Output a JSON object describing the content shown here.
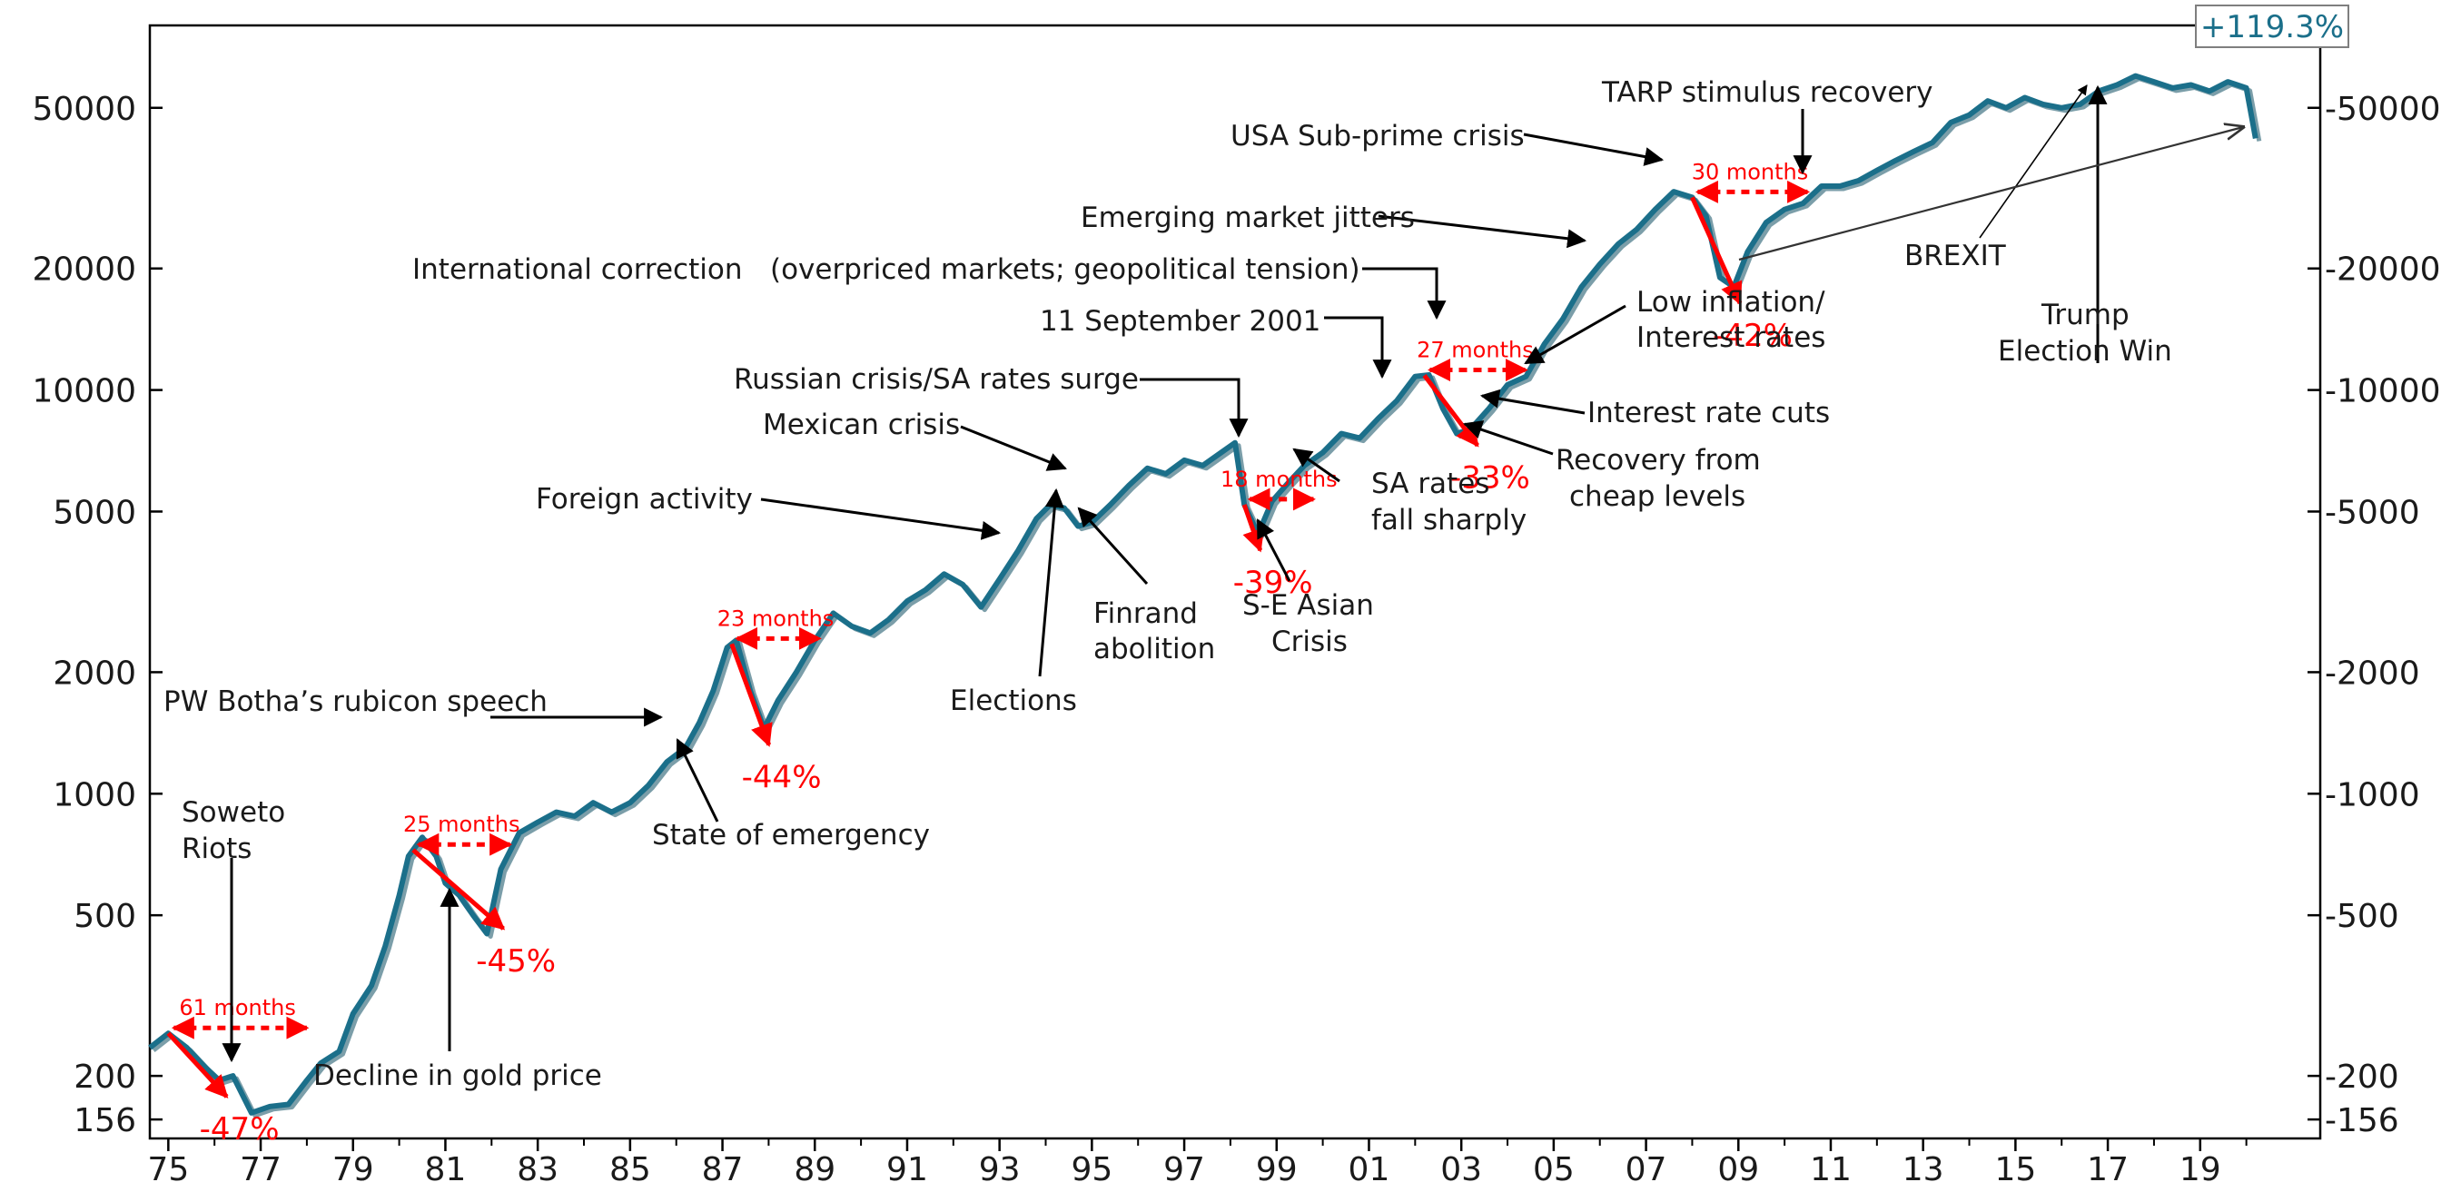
{
  "chart_data": {
    "type": "line",
    "y_scale": "log",
    "ylim": [
      140,
      80000
    ],
    "xlim": [
      1974.6,
      2021.6
    ],
    "y_ticks": [
      156,
      200,
      500,
      1000,
      2000,
      5000,
      10000,
      20000,
      50000
    ],
    "y_tick_labels": [
      "156",
      "200",
      "500",
      "1000",
      "2000",
      "5000",
      "10000",
      "20000",
      "50000"
    ],
    "right_tick_labels": [
      "-156",
      "-200",
      "-500",
      "-1000",
      "-2000",
      "-5000",
      "-10000",
      "-20000",
      "-50000"
    ],
    "x_ticks": [
      1975,
      1977,
      1979,
      1981,
      1983,
      1985,
      1987,
      1989,
      1991,
      1993,
      1995,
      1997,
      1999,
      2001,
      2003,
      2005,
      2007,
      2009,
      2011,
      2013,
      2015,
      2017,
      2019
    ],
    "x_tick_labels": [
      "75",
      "77",
      "79",
      "81",
      "83",
      "85",
      "87",
      "89",
      "91",
      "93",
      "95",
      "97",
      "99",
      "01",
      "03",
      "05",
      "07",
      "09",
      "11",
      "13",
      "15",
      "17",
      "19"
    ],
    "line_color": "#1b6f8a",
    "series": [
      {
        "x": [
          1974.6,
          1975.0,
          1975.4,
          1975.8,
          1976.1,
          1976.4,
          1976.8,
          1977.2,
          1977.6,
          1978.0,
          1978.3,
          1978.7,
          1979.0,
          1979.4,
          1979.7,
          1980.0,
          1980.2,
          1980.5,
          1980.8,
          1981.0,
          1981.3,
          1981.6,
          1981.9,
          1982.2,
          1982.6,
          1983.0,
          1983.4,
          1983.8,
          1984.2,
          1984.6,
          1985.0,
          1985.4,
          1985.8,
          1986.2,
          1986.5,
          1986.8,
          1987.1,
          1987.3,
          1987.6,
          1987.9,
          1988.2,
          1988.6,
          1989.0,
          1989.4,
          1989.8,
          1990.2,
          1990.6,
          1991.0,
          1991.4,
          1991.8,
          1992.2,
          1992.6,
          1993.0,
          1993.4,
          1993.8,
          1994.1,
          1994.4,
          1994.7,
          1995.0,
          1995.4,
          1995.8,
          1996.2,
          1996.6,
          1997.0,
          1997.4,
          1997.8,
          1998.1,
          1998.3,
          1998.6,
          1998.9,
          1999.2,
          1999.6,
          2000.0,
          2000.4,
          2000.8,
          2001.2,
          2001.6,
          2002.0,
          2002.3,
          2002.6,
          2002.9,
          2003.2,
          2003.6,
          2004.0,
          2004.4,
          2004.8,
          2005.2,
          2005.6,
          2006.0,
          2006.4,
          2006.8,
          2007.2,
          2007.6,
          2008.0,
          2008.3,
          2008.6,
          2008.9,
          2009.2,
          2009.6,
          2010.0,
          2010.4,
          2010.8,
          2011.2,
          2011.6,
          2012.0,
          2012.4,
          2012.8,
          2013.2,
          2013.6,
          2014.0,
          2014.4,
          2014.8,
          2015.2,
          2015.6,
          2016.0,
          2016.4,
          2016.8,
          2017.2,
          2017.6,
          2018.0,
          2018.4,
          2018.8,
          2019.2,
          2019.6,
          2019.8,
          2020.0,
          2020.2
        ],
        "y": [
          235,
          255,
          235,
          210,
          195,
          200,
          162,
          168,
          170,
          195,
          215,
          230,
          285,
          335,
          420,
          560,
          700,
          780,
          700,
          600,
          560,
          500,
          450,
          650,
          800,
          850,
          900,
          880,
          950,
          900,
          950,
          1050,
          1200,
          1300,
          1500,
          1800,
          2300,
          2400,
          1800,
          1450,
          1700,
          2000,
          2400,
          2800,
          2600,
          2500,
          2700,
          3000,
          3200,
          3500,
          3300,
          2900,
          3400,
          4000,
          4800,
          5200,
          5100,
          4600,
          4700,
          5200,
          5800,
          6400,
          6200,
          6700,
          6500,
          7000,
          7400,
          5200,
          4400,
          5300,
          5800,
          6500,
          7000,
          7800,
          7600,
          8500,
          9400,
          10800,
          10900,
          9000,
          7800,
          8000,
          9000,
          10300,
          10800,
          13000,
          15000,
          18000,
          20500,
          23000,
          25000,
          28000,
          31000,
          30000,
          27000,
          19000,
          18000,
          22000,
          26000,
          28000,
          29000,
          32000,
          32000,
          33000,
          35000,
          37000,
          39000,
          41000,
          46000,
          48000,
          52000,
          50000,
          53000,
          51000,
          50000,
          51000,
          55000,
          57000,
          60000,
          58000,
          56000,
          57000,
          55000,
          58000,
          57000,
          56000,
          42000
        ]
      }
    ],
    "drawdowns": [
      {
        "x0": 1975.0,
        "x1": 1976.1,
        "label": "-47%"
      },
      {
        "x0": 1980.3,
        "x1": 1982.0,
        "label": "-45%"
      },
      {
        "x0": 1987.2,
        "x1": 1987.9,
        "label": "-44%"
      },
      {
        "x0": 1998.3,
        "x1": 1998.6,
        "label": "-39%"
      },
      {
        "x0": 2002.2,
        "x1": 2003.2,
        "label": "-33%"
      },
      {
        "x0": 2008.0,
        "x1": 2008.9,
        "label": "-42%"
      }
    ],
    "recoveries": [
      {
        "x0": 1975.0,
        "x1": 1978.0,
        "label": "61 months"
      },
      {
        "x0": 1980.3,
        "x1": 1982.4,
        "label": "25 months"
      },
      {
        "x0": 1987.2,
        "x1": 1989.1,
        "label": "23 months"
      },
      {
        "x0": 1998.3,
        "x1": 1999.8,
        "label": "18 months"
      },
      {
        "x0": 2002.2,
        "x1": 2004.4,
        "label": "27 months"
      },
      {
        "x0": 2008.0,
        "x1": 2010.5,
        "label": "30 months"
      }
    ],
    "annotations": [
      "Soweto",
      "Riots",
      "Decline in gold price",
      "PW Botha’s rubicon speech",
      "State of emergency",
      "Foreign activity",
      "Elections",
      "Finrand",
      "abolition",
      "Mexican crisis",
      "Russian crisis/SA rates surge",
      "S-E Asian",
      "Crisis",
      "SA rates",
      "fall sharply",
      "11 September 2001",
      "International correction",
      "(overpriced markets; geopolitical tension)",
      "Interest rate cuts",
      "Recovery from",
      "cheap levels",
      "Emerging market jitters",
      "Low inflation/",
      "Interest rates",
      "USA Sub-prime crisis",
      "TARP stimulus recovery",
      "BREXIT",
      "Trump",
      "Election Win"
    ],
    "callout": "+119.3%",
    "grid": false,
    "legend": "none"
  }
}
